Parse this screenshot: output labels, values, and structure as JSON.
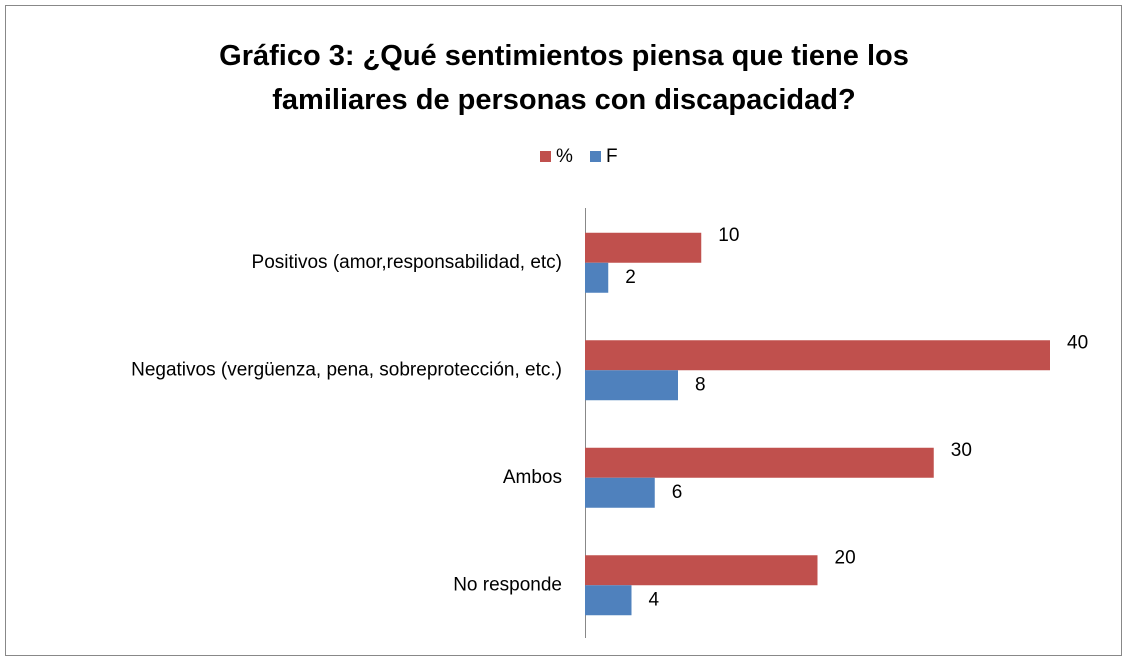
{
  "chart_data": {
    "type": "hbar",
    "title": "Gráfico 3: ¿Qué sentimientos piensa que tiene los familiares de personas con discapacidad?",
    "categories": [
      "Positivos (amor,responsabilidad, etc)",
      "Negativos (vergüenza, pena, sobreprotección, etc.)",
      "Ambos",
      "No responde"
    ],
    "series": [
      {
        "name": "%",
        "color": "#c0504d",
        "values": [
          10,
          40,
          30,
          20
        ]
      },
      {
        "name": "F",
        "color": "#4f81bd",
        "values": [
          2,
          8,
          6,
          4
        ]
      }
    ],
    "xlim": [
      0,
      40
    ],
    "legend": "top",
    "grid": false
  }
}
